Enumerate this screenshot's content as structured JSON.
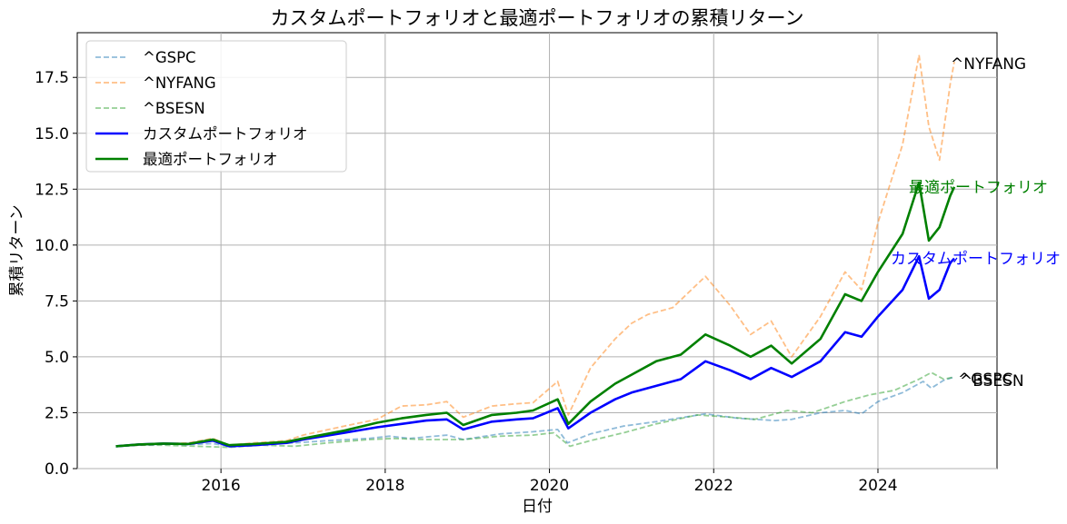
{
  "chart_data": {
    "type": "line",
    "title": "カスタムポートフォリオと最適ポートフォリオの累積リターン",
    "xlabel": "日付",
    "ylabel": "累積リターン",
    "xlim": [
      2014.25,
      2025.45
    ],
    "ylim": [
      0,
      19.5
    ],
    "xticks": [
      2016,
      2018,
      2020,
      2022,
      2024
    ],
    "xtick_labels": [
      "2016",
      "2018",
      "2020",
      "2022",
      "2024"
    ],
    "yticks": [
      0,
      2.5,
      5,
      7.5,
      10,
      12.5,
      15,
      17.5
    ],
    "ytick_labels": [
      "0.0",
      "2.5",
      "5.0",
      "7.5",
      "10.0",
      "12.5",
      "15.0",
      "17.5"
    ],
    "grid": true,
    "legend_position": "upper-left",
    "series": [
      {
        "name": "^GSPC",
        "color": "#1f77b4",
        "alpha": 0.5,
        "dash": true,
        "width": 1.8,
        "end_label": "^GSPC",
        "points": [
          [
            2014.72,
            1.0
          ],
          [
            2015.0,
            1.05
          ],
          [
            2015.4,
            1.1
          ],
          [
            2015.65,
            1.08
          ],
          [
            2015.9,
            1.12
          ],
          [
            2016.1,
            1.0
          ],
          [
            2016.5,
            1.1
          ],
          [
            2016.9,
            1.15
          ],
          [
            2017.3,
            1.25
          ],
          [
            2017.8,
            1.35
          ],
          [
            2018.05,
            1.45
          ],
          [
            2018.3,
            1.35
          ],
          [
            2018.75,
            1.5
          ],
          [
            2018.95,
            1.3
          ],
          [
            2019.4,
            1.55
          ],
          [
            2019.8,
            1.65
          ],
          [
            2020.1,
            1.75
          ],
          [
            2020.22,
            1.15
          ],
          [
            2020.5,
            1.55
          ],
          [
            2020.9,
            1.9
          ],
          [
            2021.3,
            2.1
          ],
          [
            2021.9,
            2.45
          ],
          [
            2022.3,
            2.25
          ],
          [
            2022.75,
            2.15
          ],
          [
            2022.95,
            2.2
          ],
          [
            2023.3,
            2.5
          ],
          [
            2023.6,
            2.6
          ],
          [
            2023.8,
            2.45
          ],
          [
            2024.0,
            3.0
          ],
          [
            2024.3,
            3.4
          ],
          [
            2024.55,
            3.9
          ],
          [
            2024.65,
            3.6
          ],
          [
            2024.8,
            3.95
          ],
          [
            2024.93,
            4.1
          ]
        ]
      },
      {
        "name": "^NYFANG",
        "color": "#ff7f0e",
        "alpha": 0.5,
        "dash": true,
        "width": 1.8,
        "end_label": "^NYFANG",
        "points": [
          [
            2014.72,
            1.0
          ],
          [
            2015.0,
            1.05
          ],
          [
            2015.3,
            1.1
          ],
          [
            2015.6,
            1.15
          ],
          [
            2015.9,
            1.35
          ],
          [
            2016.1,
            1.05
          ],
          [
            2016.4,
            1.15
          ],
          [
            2016.8,
            1.25
          ],
          [
            2017.0,
            1.5
          ],
          [
            2017.5,
            1.9
          ],
          [
            2017.9,
            2.2
          ],
          [
            2018.2,
            2.8
          ],
          [
            2018.5,
            2.85
          ],
          [
            2018.75,
            3.0
          ],
          [
            2018.95,
            2.3
          ],
          [
            2019.3,
            2.8
          ],
          [
            2019.6,
            2.9
          ],
          [
            2019.8,
            2.95
          ],
          [
            2020.1,
            3.9
          ],
          [
            2020.23,
            2.4
          ],
          [
            2020.5,
            4.5
          ],
          [
            2020.8,
            5.8
          ],
          [
            2021.0,
            6.5
          ],
          [
            2021.2,
            6.9
          ],
          [
            2021.5,
            7.2
          ],
          [
            2021.9,
            8.6
          ],
          [
            2022.2,
            7.3
          ],
          [
            2022.45,
            6.0
          ],
          [
            2022.7,
            6.6
          ],
          [
            2022.95,
            5.0
          ],
          [
            2023.3,
            6.8
          ],
          [
            2023.6,
            8.8
          ],
          [
            2023.8,
            8.0
          ],
          [
            2024.0,
            11.0
          ],
          [
            2024.3,
            14.5
          ],
          [
            2024.5,
            18.5
          ],
          [
            2024.62,
            15.3
          ],
          [
            2024.75,
            13.8
          ],
          [
            2024.88,
            17.2
          ],
          [
            2024.93,
            18.2
          ]
        ]
      },
      {
        "name": "^BSESN",
        "color": "#2ca02c",
        "alpha": 0.5,
        "dash": true,
        "width": 1.8,
        "end_label": "^BSESN",
        "points": [
          [
            2014.72,
            1.0
          ],
          [
            2015.0,
            1.05
          ],
          [
            2015.3,
            1.05
          ],
          [
            2015.7,
            1.0
          ],
          [
            2016.1,
            0.95
          ],
          [
            2016.5,
            1.05
          ],
          [
            2016.9,
            1.0
          ],
          [
            2017.3,
            1.15
          ],
          [
            2017.8,
            1.3
          ],
          [
            2018.1,
            1.35
          ],
          [
            2018.5,
            1.3
          ],
          [
            2018.95,
            1.3
          ],
          [
            2019.4,
            1.45
          ],
          [
            2019.8,
            1.5
          ],
          [
            2020.05,
            1.6
          ],
          [
            2020.25,
            1.0
          ],
          [
            2020.5,
            1.25
          ],
          [
            2020.9,
            1.6
          ],
          [
            2021.3,
            2.0
          ],
          [
            2021.8,
            2.4
          ],
          [
            2022.2,
            2.3
          ],
          [
            2022.5,
            2.2
          ],
          [
            2022.9,
            2.6
          ],
          [
            2023.2,
            2.5
          ],
          [
            2023.6,
            3.0
          ],
          [
            2023.9,
            3.3
          ],
          [
            2024.2,
            3.5
          ],
          [
            2024.5,
            4.0
          ],
          [
            2024.65,
            4.3
          ],
          [
            2024.8,
            4.0
          ],
          [
            2024.93,
            4.1
          ]
        ]
      },
      {
        "name": "カスタムポートフォリオ",
        "color": "#0000ff",
        "alpha": 1,
        "dash": false,
        "width": 2.6,
        "end_label": "カスタムポートフォリオ",
        "points": [
          [
            2014.72,
            1.0
          ],
          [
            2015.0,
            1.08
          ],
          [
            2015.3,
            1.12
          ],
          [
            2015.6,
            1.1
          ],
          [
            2015.9,
            1.25
          ],
          [
            2016.1,
            1.0
          ],
          [
            2016.4,
            1.05
          ],
          [
            2016.8,
            1.15
          ],
          [
            2017.0,
            1.3
          ],
          [
            2017.5,
            1.6
          ],
          [
            2017.9,
            1.85
          ],
          [
            2018.2,
            2.0
          ],
          [
            2018.5,
            2.15
          ],
          [
            2018.75,
            2.2
          ],
          [
            2018.95,
            1.75
          ],
          [
            2019.3,
            2.1
          ],
          [
            2019.6,
            2.2
          ],
          [
            2019.8,
            2.25
          ],
          [
            2020.1,
            2.7
          ],
          [
            2020.23,
            1.8
          ],
          [
            2020.5,
            2.5
          ],
          [
            2020.8,
            3.1
          ],
          [
            2021.0,
            3.4
          ],
          [
            2021.3,
            3.7
          ],
          [
            2021.6,
            4.0
          ],
          [
            2021.9,
            4.8
          ],
          [
            2022.2,
            4.4
          ],
          [
            2022.45,
            4.0
          ],
          [
            2022.7,
            4.5
          ],
          [
            2022.95,
            4.1
          ],
          [
            2023.3,
            4.8
          ],
          [
            2023.6,
            6.1
          ],
          [
            2023.8,
            5.9
          ],
          [
            2024.0,
            6.8
          ],
          [
            2024.3,
            8.0
          ],
          [
            2024.5,
            9.5
          ],
          [
            2024.62,
            7.6
          ],
          [
            2024.75,
            8.0
          ],
          [
            2024.88,
            9.2
          ],
          [
            2024.93,
            9.4
          ]
        ]
      },
      {
        "name": "最適ポートフォリオ",
        "color": "#008000",
        "alpha": 1,
        "dash": false,
        "width": 2.6,
        "end_label": "最適ポートフォリオ",
        "points": [
          [
            2014.72,
            1.0
          ],
          [
            2015.0,
            1.08
          ],
          [
            2015.3,
            1.12
          ],
          [
            2015.6,
            1.1
          ],
          [
            2015.9,
            1.3
          ],
          [
            2016.1,
            1.05
          ],
          [
            2016.4,
            1.1
          ],
          [
            2016.8,
            1.2
          ],
          [
            2017.0,
            1.35
          ],
          [
            2017.5,
            1.7
          ],
          [
            2017.9,
            2.05
          ],
          [
            2018.2,
            2.25
          ],
          [
            2018.5,
            2.4
          ],
          [
            2018.75,
            2.5
          ],
          [
            2018.95,
            1.95
          ],
          [
            2019.3,
            2.4
          ],
          [
            2019.6,
            2.5
          ],
          [
            2019.8,
            2.6
          ],
          [
            2020.1,
            3.1
          ],
          [
            2020.23,
            2.0
          ],
          [
            2020.5,
            3.0
          ],
          [
            2020.8,
            3.8
          ],
          [
            2021.0,
            4.2
          ],
          [
            2021.3,
            4.8
          ],
          [
            2021.6,
            5.1
          ],
          [
            2021.9,
            6.0
          ],
          [
            2022.2,
            5.5
          ],
          [
            2022.45,
            5.0
          ],
          [
            2022.7,
            5.5
          ],
          [
            2022.95,
            4.7
          ],
          [
            2023.3,
            5.8
          ],
          [
            2023.6,
            7.8
          ],
          [
            2023.8,
            7.5
          ],
          [
            2024.0,
            8.8
          ],
          [
            2024.3,
            10.5
          ],
          [
            2024.5,
            12.8
          ],
          [
            2024.62,
            10.2
          ],
          [
            2024.75,
            10.8
          ],
          [
            2024.88,
            12.2
          ],
          [
            2024.93,
            12.6
          ]
        ]
      }
    ]
  }
}
